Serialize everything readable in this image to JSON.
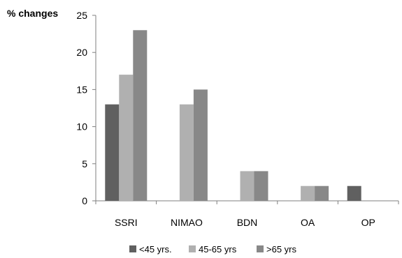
{
  "chart_data": {
    "type": "bar",
    "ylabel": "% changes",
    "xlabel": "",
    "ylim": [
      0,
      25
    ],
    "yticks": [
      0,
      5,
      10,
      15,
      20,
      25
    ],
    "categories": [
      "SSRI",
      "NIMAO",
      "BDN",
      "OA",
      "OP"
    ],
    "series": [
      {
        "name": "<45 yrs.",
        "color": "#606060",
        "values": [
          13,
          0,
          0,
          0,
          2
        ]
      },
      {
        "name": "45-65 yrs",
        "color": "#b0b0b0",
        "values": [
          17,
          13,
          4,
          2,
          0
        ]
      },
      {
        "name": ">65 yrs",
        "color": "#888888",
        "values": [
          23,
          15,
          4,
          2,
          0
        ]
      }
    ],
    "legend_position": "bottom",
    "grid": false
  }
}
